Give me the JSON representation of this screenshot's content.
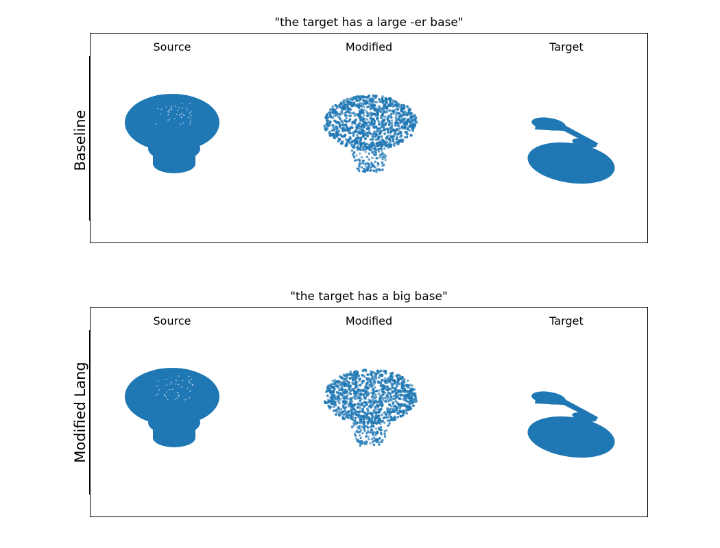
{
  "columns": [
    "Source",
    "Modified",
    "Target"
  ],
  "rows": [
    {
      "label": "Baseline",
      "title": "\"the target has a large -er base\""
    },
    {
      "label": "Modified Lang",
      "title": "\"the target has a big base\""
    }
  ],
  "colors": {
    "points": "#1f77b4",
    "frame": "#000000"
  }
}
